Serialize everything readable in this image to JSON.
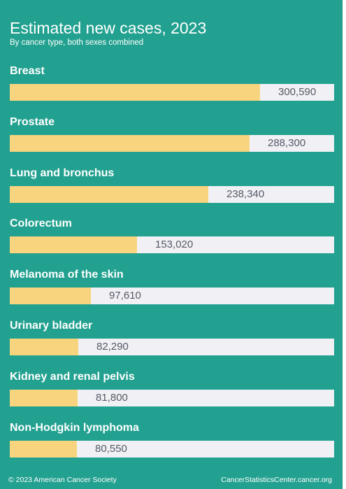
{
  "title": "Estimated new cases, 2023",
  "subtitle": "By cancer type, both sexes combined",
  "footer": {
    "copyright": "© 2023 American Cancer Society",
    "source": "CancerStatisticsCenter.cancer.org"
  },
  "colors": {
    "background": "#23a190",
    "bar_fill": "#f8d47e",
    "bar_track": "#f1f1f5",
    "value_text": "#555a66"
  },
  "chart_data": {
    "type": "bar",
    "orientation": "horizontal",
    "categories": [
      "Breast",
      "Prostate",
      "Lung and bronchus",
      "Colorectum",
      "Melanoma of the skin",
      "Urinary bladder",
      "Kidney and renal pelvis",
      "Non-Hodgkin lymphoma"
    ],
    "values": [
      300590,
      288300,
      238340,
      153020,
      97610,
      82290,
      81800,
      80550
    ],
    "value_labels": [
      "300,590",
      "288,300",
      "238,340",
      "153,020",
      "97,610",
      "82,290",
      "81,800",
      "80,550"
    ],
    "xlim": [
      0,
      390000
    ],
    "grid": false,
    "legend": "none"
  }
}
